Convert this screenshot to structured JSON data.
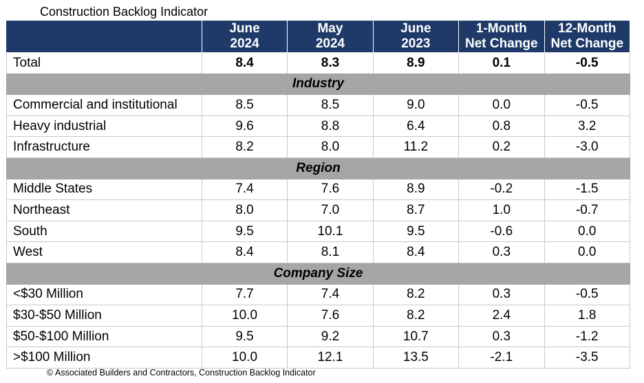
{
  "chart_data": {
    "type": "table",
    "title": "Construction Backlog Indicator",
    "columns": [
      {
        "line1": "June",
        "line2": "2024"
      },
      {
        "line1": "May",
        "line2": "2024"
      },
      {
        "line1": "June",
        "line2": "2023"
      },
      {
        "line1": "1-Month",
        "line2": "Net Change"
      },
      {
        "line1": "12-Month",
        "line2": "Net Change"
      }
    ],
    "total": {
      "label": "Total",
      "values": [
        "8.4",
        "8.3",
        "8.9",
        "0.1",
        "-0.5"
      ]
    },
    "sections": [
      {
        "name": "Industry",
        "rows": [
          {
            "label": "Commercial and institutional",
            "values": [
              "8.5",
              "8.5",
              "9.0",
              "0.0",
              "-0.5"
            ]
          },
          {
            "label": "Heavy industrial",
            "values": [
              "9.6",
              "8.8",
              "6.4",
              "0.8",
              "3.2"
            ]
          },
          {
            "label": "Infrastructure",
            "values": [
              "8.2",
              "8.0",
              "11.2",
              "0.2",
              "-3.0"
            ]
          }
        ]
      },
      {
        "name": "Region",
        "rows": [
          {
            "label": "Middle States",
            "values": [
              "7.4",
              "7.6",
              "8.9",
              "-0.2",
              "-1.5"
            ]
          },
          {
            "label": "Northeast",
            "values": [
              "8.0",
              "7.0",
              "8.7",
              "1.0",
              "-0.7"
            ]
          },
          {
            "label": "South",
            "values": [
              "9.5",
              "10.1",
              "9.5",
              "-0.6",
              "0.0"
            ]
          },
          {
            "label": "West",
            "values": [
              "8.4",
              "8.1",
              "8.4",
              "0.3",
              "0.0"
            ]
          }
        ]
      },
      {
        "name": "Company Size",
        "rows": [
          {
            "label": "<$30 Million",
            "values": [
              "7.7",
              "7.4",
              "8.2",
              "0.3",
              "-0.5"
            ]
          },
          {
            "label": "$30-$50 Million",
            "values": [
              "10.0",
              "7.6",
              "8.2",
              "2.4",
              "1.8"
            ]
          },
          {
            "label": "$50-$100 Million",
            "values": [
              "9.5",
              "9.2",
              "10.7",
              "0.3",
              "-1.2"
            ]
          },
          {
            "label": ">$100 Million",
            "values": [
              "10.0",
              "12.1",
              "13.5",
              "-2.1",
              "-3.5"
            ]
          }
        ]
      }
    ],
    "colors": {
      "header_bg": "#1f3a68",
      "section_bg": "#a6a6a6"
    }
  },
  "footer": "© Associated Builders and Contractors, Construction Backlog Indicator"
}
